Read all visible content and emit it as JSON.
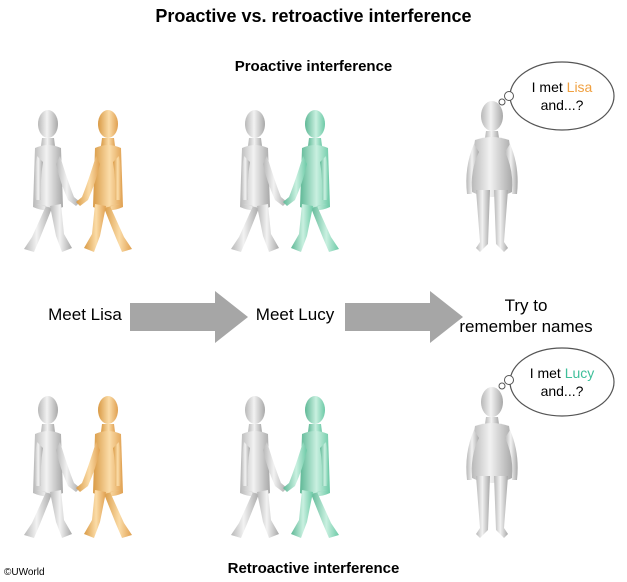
{
  "title": "Proactive vs. retroactive interference",
  "sections": {
    "top": "Proactive interference",
    "bottom": "Retroactive interference"
  },
  "steps": {
    "meet_lisa": "Meet Lisa",
    "meet_lucy": "Meet Lucy",
    "remember_line1": "Try to",
    "remember_line2": "remember names"
  },
  "bubbles": {
    "top": {
      "prefix": "I met ",
      "name": "Lisa",
      "suffix": "and...?"
    },
    "bottom": {
      "prefix": "I met ",
      "name": "Lucy",
      "suffix": "and...?"
    }
  },
  "copyright": "©UWorld",
  "colors": {
    "neutral_figure": "#d9d9d9",
    "lisa": "#f2c27e",
    "lucy": "#9fdcc4",
    "lisa_text": "#f0a040",
    "lucy_text": "#3fbf9a",
    "arrow": "#a6a6a6"
  }
}
